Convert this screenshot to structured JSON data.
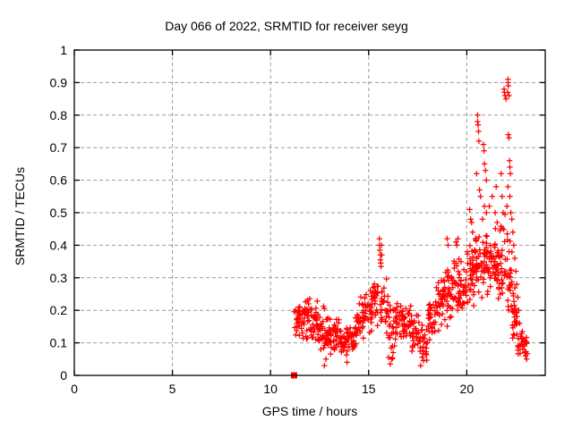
{
  "page": {
    "background": "#ffffff"
  },
  "chart_data": {
    "type": "scatter",
    "title": "Day 066 of 2022, SRMTID for receiver seyg",
    "xlabel": "GPS time / hours",
    "ylabel": "SRMTID / TECUs",
    "xlim": [
      0,
      24
    ],
    "ylim": [
      0,
      1
    ],
    "xticks": [
      {
        "value": 0,
        "label": "0"
      },
      {
        "value": 5,
        "label": "5"
      },
      {
        "value": 10,
        "label": "10"
      },
      {
        "value": 15,
        "label": "15"
      },
      {
        "value": 20,
        "label": "20"
      }
    ],
    "yticks": [
      {
        "value": 0,
        "label": "0"
      },
      {
        "value": 0.1,
        "label": "0.1"
      },
      {
        "value": 0.2,
        "label": "0.2"
      },
      {
        "value": 0.3,
        "label": "0.3"
      },
      {
        "value": 0.4,
        "label": "0.4"
      },
      {
        "value": 0.5,
        "label": "0.5"
      },
      {
        "value": 0.6,
        "label": "0.6"
      },
      {
        "value": 0.7,
        "label": "0.7"
      },
      {
        "value": 0.8,
        "label": "0.8"
      },
      {
        "value": 0.9,
        "label": "0.9"
      },
      {
        "value": 1,
        "label": "1"
      }
    ],
    "grid": true,
    "legend": "none",
    "styles": {
      "marker_color": "#ff0000",
      "grid_color": "#9a9a9a",
      "axis_color": "#000000",
      "text_color": "#000000"
    },
    "series": [
      {
        "name": "srmtid-points",
        "marker": "plus",
        "color": "#ff0000",
        "seed": 20220666,
        "outlier_points": [
          [
            12.75,
            0.03
          ],
          [
            12.82,
            0.05
          ],
          [
            13.9,
            0.04
          ],
          [
            16.1,
            0.035
          ],
          [
            16.18,
            0.05
          ],
          [
            16.25,
            0.07
          ],
          [
            17.65,
            0.03
          ],
          [
            17.8,
            0.045
          ],
          [
            15.55,
            0.42
          ],
          [
            15.55,
            0.4
          ],
          [
            15.57,
            0.385
          ],
          [
            15.6,
            0.37
          ],
          [
            15.6,
            0.355
          ],
          [
            15.62,
            0.345
          ],
          [
            15.65,
            0.4
          ],
          [
            15.67,
            0.37
          ],
          [
            15.63,
            0.335
          ],
          [
            19.0,
            0.42
          ],
          [
            19.05,
            0.4
          ],
          [
            19.45,
            0.41
          ],
          [
            19.5,
            0.4
          ],
          [
            19.55,
            0.42
          ],
          [
            20.15,
            0.51
          ],
          [
            20.2,
            0.48
          ],
          [
            20.25,
            0.47
          ],
          [
            20.3,
            0.44
          ],
          [
            20.55,
            0.8
          ],
          [
            20.55,
            0.78
          ],
          [
            20.58,
            0.77
          ],
          [
            20.6,
            0.75
          ],
          [
            20.62,
            0.72
          ],
          [
            20.5,
            0.62
          ],
          [
            20.65,
            0.57
          ],
          [
            20.7,
            0.55
          ],
          [
            20.85,
            0.71
          ],
          [
            20.88,
            0.69
          ],
          [
            20.9,
            0.65
          ],
          [
            20.95,
            0.63
          ],
          [
            21.0,
            0.6
          ],
          [
            20.9,
            0.52
          ],
          [
            21.0,
            0.5
          ],
          [
            20.8,
            0.48
          ],
          [
            21.15,
            0.52
          ],
          [
            21.3,
            0.55
          ],
          [
            21.45,
            0.5
          ],
          [
            21.5,
            0.58
          ],
          [
            21.55,
            0.47
          ],
          [
            21.75,
            0.62
          ],
          [
            21.8,
            0.55
          ],
          [
            21.9,
            0.88
          ],
          [
            21.92,
            0.87
          ],
          [
            21.95,
            0.86
          ],
          [
            22.0,
            0.85
          ],
          [
            21.85,
            0.5
          ],
          [
            21.95,
            0.495
          ],
          [
            22.1,
            0.91
          ],
          [
            22.1,
            0.9
          ],
          [
            22.12,
            0.89
          ],
          [
            22.08,
            0.87
          ],
          [
            22.15,
            0.86
          ],
          [
            22.12,
            0.74
          ],
          [
            22.15,
            0.73
          ],
          [
            22.18,
            0.66
          ],
          [
            22.2,
            0.64
          ],
          [
            22.22,
            0.62
          ],
          [
            22.1,
            0.58
          ],
          [
            22.2,
            0.55
          ],
          [
            22.05,
            0.52
          ],
          [
            22.25,
            0.5
          ],
          [
            22.3,
            0.48
          ],
          [
            22.35,
            0.44
          ],
          [
            22.4,
            0.4
          ],
          [
            22.45,
            0.36
          ],
          [
            22.5,
            0.32
          ],
          [
            22.55,
            0.28
          ],
          [
            22.6,
            0.24
          ],
          [
            22.65,
            0.2
          ],
          [
            22.7,
            0.16
          ],
          [
            22.75,
            0.12
          ],
          [
            22.85,
            0.09
          ],
          [
            22.95,
            0.07
          ],
          [
            23.0,
            0.06
          ],
          [
            23.05,
            0.05
          ]
        ],
        "estimated_density_bands": [
          [
            11.2,
            11.6,
            25,
            0.1,
            0.24
          ],
          [
            11.6,
            12.0,
            30,
            0.08,
            0.26
          ],
          [
            12.0,
            12.4,
            30,
            0.09,
            0.25
          ],
          [
            12.4,
            12.8,
            28,
            0.06,
            0.22
          ],
          [
            12.8,
            13.2,
            28,
            0.06,
            0.2
          ],
          [
            13.2,
            13.6,
            28,
            0.05,
            0.19
          ],
          [
            13.6,
            14.0,
            28,
            0.05,
            0.16
          ],
          [
            14.0,
            14.4,
            26,
            0.06,
            0.18
          ],
          [
            14.4,
            14.8,
            28,
            0.09,
            0.25
          ],
          [
            14.8,
            15.2,
            28,
            0.11,
            0.28
          ],
          [
            15.2,
            15.6,
            26,
            0.13,
            0.32
          ],
          [
            15.6,
            16.0,
            26,
            0.12,
            0.3
          ],
          [
            16.0,
            16.4,
            26,
            0.04,
            0.26
          ],
          [
            16.4,
            16.8,
            26,
            0.1,
            0.24
          ],
          [
            16.8,
            17.2,
            26,
            0.09,
            0.22
          ],
          [
            17.2,
            17.6,
            26,
            0.06,
            0.2
          ],
          [
            17.6,
            18.0,
            26,
            0.03,
            0.18
          ],
          [
            18.0,
            18.4,
            28,
            0.1,
            0.26
          ],
          [
            18.4,
            18.8,
            28,
            0.13,
            0.32
          ],
          [
            18.8,
            19.2,
            30,
            0.14,
            0.36
          ],
          [
            19.2,
            19.6,
            30,
            0.15,
            0.38
          ],
          [
            19.6,
            20.0,
            30,
            0.18,
            0.37
          ],
          [
            20.0,
            20.4,
            32,
            0.2,
            0.42
          ],
          [
            20.4,
            20.8,
            32,
            0.22,
            0.44
          ],
          [
            20.8,
            21.2,
            32,
            0.24,
            0.45
          ],
          [
            21.2,
            21.6,
            32,
            0.24,
            0.46
          ],
          [
            21.6,
            22.0,
            30,
            0.22,
            0.48
          ],
          [
            22.0,
            22.3,
            24,
            0.15,
            0.45
          ],
          [
            22.3,
            22.6,
            26,
            0.09,
            0.28
          ],
          [
            22.6,
            23.1,
            26,
            0.04,
            0.14
          ]
        ]
      },
      {
        "name": "flag-point",
        "marker": "filled-square",
        "color": "#ff0000",
        "points": [
          [
            11.2,
            0
          ]
        ]
      }
    ]
  }
}
